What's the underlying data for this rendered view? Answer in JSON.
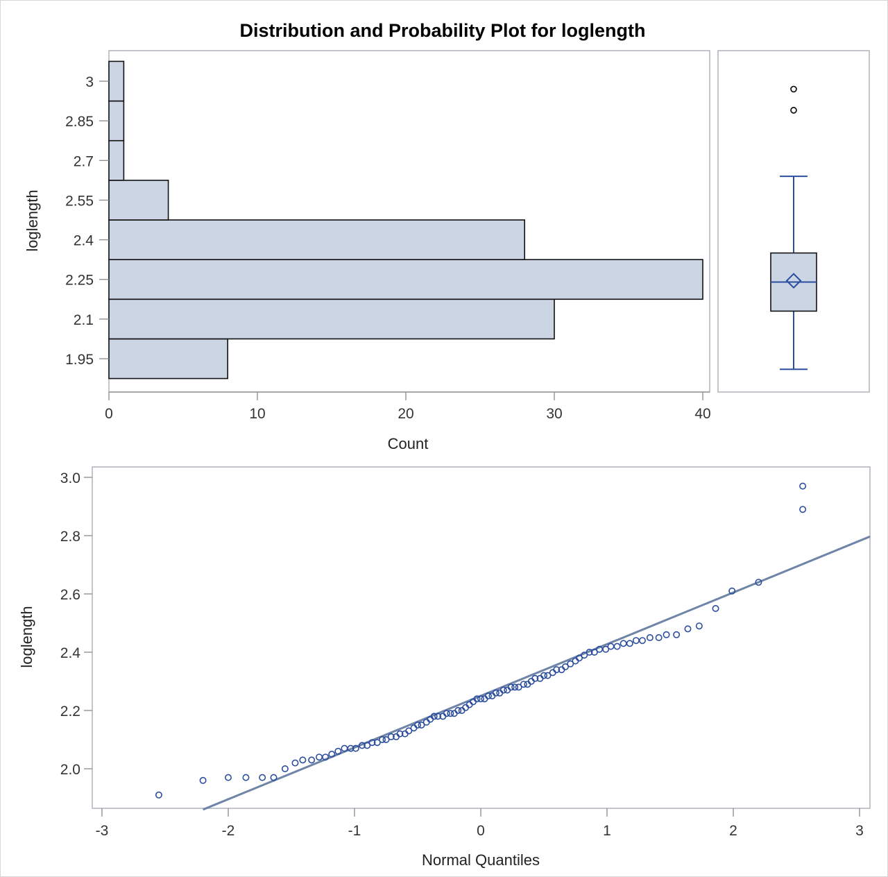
{
  "chart_data": [
    {
      "type": "bar",
      "orientation": "horizontal",
      "title": "Distribution and Probability Plot for loglength",
      "xlabel": "Count",
      "ylabel": "loglength",
      "bin_width": 0.15,
      "bin_midpoints": [
        1.95,
        2.1,
        2.25,
        2.4,
        2.55,
        2.7,
        2.85,
        3.0
      ],
      "values": [
        8,
        30,
        40,
        28,
        4,
        1,
        1,
        1
      ],
      "xlim": [
        0,
        40
      ],
      "xticks": [
        "0",
        "10",
        "20",
        "30",
        "40"
      ],
      "yticks": [
        "1.95",
        "2.1",
        "2.25",
        "2.4",
        "2.55",
        "2.7",
        "2.85",
        "3"
      ],
      "grid": false
    },
    {
      "type": "box",
      "orientation": "vertical",
      "ylabel": "loglength",
      "min": 1.91,
      "q1": 2.13,
      "median": 2.24,
      "mean": 2.245,
      "q3": 2.35,
      "whisker_high": 2.64,
      "outliers": [
        2.89,
        2.97
      ]
    },
    {
      "type": "scatter",
      "xlabel": "Normal Quantiles",
      "ylabel": "loglength",
      "xlim": [
        -3,
        3
      ],
      "ylim": [
        1.86,
        3.04
      ],
      "xticks": [
        "-3",
        "-2",
        "-1",
        "0",
        "1",
        "2",
        "3"
      ],
      "yticks": [
        "2.0",
        "2.2",
        "2.4",
        "2.6",
        "2.8",
        "3.0"
      ],
      "reference_line": {
        "x1": -2.2,
        "y1": 1.86,
        "x2": 3.1,
        "y2": 2.8
      },
      "points": [
        [
          -2.55,
          1.91
        ],
        [
          -2.2,
          1.96
        ],
        [
          -2.0,
          1.97
        ],
        [
          -1.86,
          1.97
        ],
        [
          -1.73,
          1.97
        ],
        [
          -1.64,
          1.97
        ],
        [
          -1.55,
          2.0
        ],
        [
          -1.47,
          2.02
        ],
        [
          -1.41,
          2.03
        ],
        [
          -1.34,
          2.03
        ],
        [
          -1.28,
          2.04
        ],
        [
          -1.23,
          2.04
        ],
        [
          -1.18,
          2.05
        ],
        [
          -1.13,
          2.06
        ],
        [
          -1.08,
          2.07
        ],
        [
          -1.03,
          2.07
        ],
        [
          -0.99,
          2.07
        ],
        [
          -0.94,
          2.08
        ],
        [
          -0.9,
          2.08
        ],
        [
          -0.86,
          2.09
        ],
        [
          -0.82,
          2.09
        ],
        [
          -0.78,
          2.1
        ],
        [
          -0.75,
          2.1
        ],
        [
          -0.71,
          2.11
        ],
        [
          -0.67,
          2.11
        ],
        [
          -0.64,
          2.12
        ],
        [
          -0.6,
          2.12
        ],
        [
          -0.57,
          2.13
        ],
        [
          -0.53,
          2.14
        ],
        [
          -0.5,
          2.15
        ],
        [
          -0.47,
          2.15
        ],
        [
          -0.43,
          2.16
        ],
        [
          -0.4,
          2.17
        ],
        [
          -0.37,
          2.18
        ],
        [
          -0.34,
          2.18
        ],
        [
          -0.3,
          2.18
        ],
        [
          -0.27,
          2.19
        ],
        [
          -0.24,
          2.19
        ],
        [
          -0.21,
          2.19
        ],
        [
          -0.18,
          2.2
        ],
        [
          -0.15,
          2.2
        ],
        [
          -0.12,
          2.21
        ],
        [
          -0.09,
          2.22
        ],
        [
          -0.06,
          2.23
        ],
        [
          -0.03,
          2.24
        ],
        [
          0.0,
          2.24
        ],
        [
          0.03,
          2.24
        ],
        [
          0.06,
          2.25
        ],
        [
          0.09,
          2.25
        ],
        [
          0.12,
          2.26
        ],
        [
          0.15,
          2.26
        ],
        [
          0.18,
          2.27
        ],
        [
          0.21,
          2.27
        ],
        [
          0.24,
          2.28
        ],
        [
          0.27,
          2.28
        ],
        [
          0.3,
          2.28
        ],
        [
          0.34,
          2.29
        ],
        [
          0.37,
          2.29
        ],
        [
          0.4,
          2.3
        ],
        [
          0.43,
          2.31
        ],
        [
          0.47,
          2.31
        ],
        [
          0.5,
          2.32
        ],
        [
          0.53,
          2.32
        ],
        [
          0.57,
          2.33
        ],
        [
          0.6,
          2.34
        ],
        [
          0.64,
          2.34
        ],
        [
          0.67,
          2.35
        ],
        [
          0.71,
          2.36
        ],
        [
          0.75,
          2.37
        ],
        [
          0.78,
          2.38
        ],
        [
          0.82,
          2.39
        ],
        [
          0.86,
          2.4
        ],
        [
          0.9,
          2.4
        ],
        [
          0.94,
          2.41
        ],
        [
          0.99,
          2.41
        ],
        [
          1.03,
          2.42
        ],
        [
          1.08,
          2.42
        ],
        [
          1.13,
          2.43
        ],
        [
          1.18,
          2.43
        ],
        [
          1.23,
          2.44
        ],
        [
          1.28,
          2.44
        ],
        [
          1.34,
          2.45
        ],
        [
          1.41,
          2.45
        ],
        [
          1.47,
          2.46
        ],
        [
          1.55,
          2.46
        ],
        [
          1.64,
          2.48
        ],
        [
          1.73,
          2.49
        ],
        [
          1.86,
          2.55
        ],
        [
          1.99,
          2.61
        ],
        [
          2.2,
          2.64
        ],
        [
          2.55,
          2.89
        ],
        [
          2.97,
          2.97
        ]
      ]
    }
  ]
}
